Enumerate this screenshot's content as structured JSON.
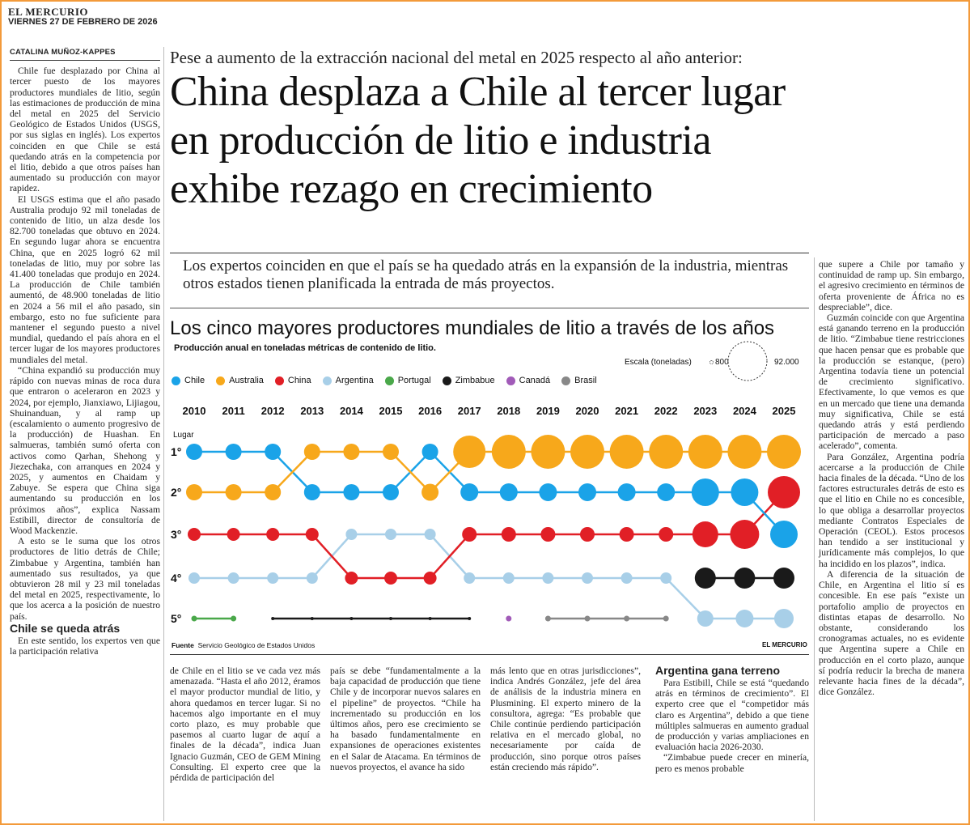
{
  "masthead": {
    "paper": "EL MERCURIO",
    "date": "VIERNES 27 DE FEBRERO DE 2026"
  },
  "byline": "CATALINA MUÑOZ-KAPPES",
  "kicker": "Pese a aumento de la extracción nacional del metal en 2025 respecto al año anterior:",
  "headline": [
    "China desplaza a Chile al tercer lugar",
    "en producción de litio e industria",
    "exhibe rezago en crecimiento"
  ],
  "dek": "Los expertos coinciden en que el país se ha quedado atrás en la expansión de la industria, mientras otros estados tienen planificada la entrada de más proyectos.",
  "col1": {
    "p1": "Chile fue desplazado por China al tercer puesto de los mayores productores mundiales de litio, según las estimaciones de producción de mina del metal en 2025 del Servicio Geológico de Estados Unidos (USGS, por sus siglas en inglés). Los expertos coinciden en que Chile se está quedando atrás en la competencia por el litio, debido a que otros países han aumentado su producción con mayor rapidez.",
    "p2": "El USGS estima que el año pasado Australia produjo 92 mil toneladas de contenido de litio, un alza desde los 82.700 toneladas que obtuvo en 2024. En segundo lugar ahora se encuentra China, que en 2025 logró 62 mil toneladas de litio, muy por sobre las 41.400 toneladas que produjo en 2024. La producción de Chile también aumentó, de 48.900 toneladas de litio en 2024 a 56 mil el año pasado, sin embargo, esto no fue suficiente para mantener el segundo puesto a nivel mundial, quedando el país ahora en el tercer lugar de los mayores productores mundiales del metal.",
    "p3": "“China expandió su producción muy rápido con nuevas minas de roca dura que entraron o aceleraron en 2023 y 2024, por ejemplo, Jianxiawo, Lijiagou, Shuinanduan, y al ramp up (escalamiento o aumento progresivo de la producción) de Huashan. En salmueras, también sumó oferta con activos como Qarhan, Shehong y Jiezechaka, con arranques en 2024 y 2025, y aumentos en Chaidam y Zabuye. Se espera que China siga aumentando su producción en los próximos años”, explica Nassam Estibill, director de consultoría de Wood Mackenzie.",
    "p4": "A esto se le suma que los otros productores de litio detrás de Chile; Zimbabue y Argentina, también han aumentado sus resultados, ya que obtuvieron 28 mil y 23 mil toneladas del metal en 2025, respectivamente, lo que los acerca a la posición de nuestro país.",
    "sub": "Chile se queda atrás",
    "p5": "En este sentido, los expertos ven que la participación relativa"
  },
  "col2": "de Chile en el litio se ve cada vez más amenazada. “Hasta el año 2012, éramos el mayor productor mundial de litio, y ahora quedamos en tercer lugar. Si no hacemos algo importante en el muy corto plazo, es muy probable que pasemos al cuarto lugar de aquí a finales de la década”, indica Juan Ignacio Guzmán, CEO de GEM Mining Consulting. El experto cree que la pérdida de participación del",
  "col3": "país se debe “fundamentalmente a la baja capacidad de producción que tiene Chile y de incorporar nuevos salares en el pipeline” de proyectos. “Chile ha incrementado su producción en los últimos años, pero ese crecimiento se ha basado fundamentalmente en expansiones de operaciones existentes en el Salar de Atacama. En términos de nuevos proyectos, el avance ha sido",
  "col4": "más lento que en otras jurisdicciones”, indica Andrés González, jefe del área de análisis de la industria minera en Plusmining. El experto minero de la consultora, agrega: “Es probable que Chile continúe perdiendo participación relativa en el mercado global, no necesariamente por caída de producción, sino porque otros países están creciendo más rápido”.",
  "col5": {
    "sub": "Argentina gana terreno",
    "p1": "Para Estibill, Chile se está “quedando atrás en términos de crecimiento”. El experto cree que el “competidor más claro es Argentina”, debido a que tiene múltiples salmueras en aumento gradual de producción y varias ampliaciones en evaluación hacia 2026-2030.",
    "p2": "“Zimbabue puede crecer en minería, pero es menos probable"
  },
  "col6": {
    "p1": "que supere a Chile por tamaño y continuidad de ramp up. Sin embargo, el agresivo crecimiento en términos de oferta proveniente de África no es despreciable”, dice.",
    "p2": "Guzmán coincide con que Argentina está ganando terreno en la producción de litio. “Zimbabue tiene restricciones que hacen pensar que es probable que la producción se estanque, (pero) Argentina todavía tiene un potencial de crecimiento significativo. Efectivamente, lo que vemos es que en un mercado que tiene una demanda muy significativa, Chile se está quedando atrás y está perdiendo participación de mercado a paso acelerado”, comenta.",
    "p3": "Para González, Argentina podría acercarse a la producción de Chile hacia finales de la década. “Uno de los factores estructurales detrás de esto es que el litio en Chile no es concesible, lo que obliga a desarrollar proyectos mediante Contratos Especiales de Operación (CEOL). Estos procesos han tendido a ser institucional y jurídicamente más complejos, lo que ha incidido en los plazos”, indica.",
    "p4": "A diferencia de la situación de Chile, en Argentina el litio sí es concesible. En ese país “existe un portafolio amplio de proyectos en distintas etapas de desarrollo. No obstante, considerando los cronogramas actuales, no es evidente que Argentina supere a Chile en producción en el corto plazo, aunque sí podría reducir la brecha de manera relevante hacia fines de la década”, dice González."
  },
  "chart": {
    "title": "Los cinco mayores productores mundiales de litio a través de los años",
    "subtitle": "Producción anual en toneladas métricas de contenido de litio.",
    "scale_label": "Escala (toneladas)",
    "scale_min": "800",
    "scale_max": "92.000",
    "lugar_label": "Lugar",
    "fuente_label": "Fuente",
    "fuente_text": "Servicio Geológico de Estados Unidos",
    "credit": "EL MERCURIO",
    "legend": [
      {
        "name": "Chile",
        "color": "#1aa3e8"
      },
      {
        "name": "Australia",
        "color": "#f7a81b"
      },
      {
        "name": "China",
        "color": "#e11f26"
      },
      {
        "name": "Argentina",
        "color": "#a8cfe8"
      },
      {
        "name": "Portugal",
        "color": "#4aa84a"
      },
      {
        "name": "Zimbabue",
        "color": "#1a1a1a"
      },
      {
        "name": "Canadá",
        "color": "#a15bb8"
      },
      {
        "name": "Brasil",
        "color": "#888888"
      }
    ]
  },
  "chart_data": {
    "type": "bump",
    "title": "Los cinco mayores productores mundiales de litio a través de los años",
    "xlabel": "",
    "ylabel": "Lugar",
    "years": [
      "2010",
      "2011",
      "2012",
      "2013",
      "2014",
      "2015",
      "2016",
      "2017",
      "2018",
      "2019",
      "2020",
      "2021",
      "2022",
      "2023",
      "2024",
      "2025"
    ],
    "rank_labels": [
      "1°",
      "2°",
      "3°",
      "4°",
      "5°"
    ],
    "series": [
      {
        "name": "Chile",
        "ranks": [
          1,
          1,
          1,
          2,
          2,
          2,
          1,
          2,
          2,
          2,
          2,
          2,
          2,
          2,
          2,
          3
        ],
        "tonnes_2024": 48900,
        "tonnes_2025": 56000
      },
      {
        "name": "Australia",
        "ranks": [
          2,
          2,
          2,
          1,
          1,
          1,
          2,
          1,
          1,
          1,
          1,
          1,
          1,
          1,
          1,
          1
        ],
        "tonnes_2024": 82700,
        "tonnes_2025": 92000
      },
      {
        "name": "China",
        "ranks": [
          3,
          3,
          3,
          3,
          4,
          4,
          4,
          3,
          3,
          3,
          3,
          3,
          3,
          3,
          3,
          2
        ],
        "tonnes_2024": 41400,
        "tonnes_2025": 62000
      },
      {
        "name": "Argentina",
        "ranks": [
          4,
          4,
          4,
          4,
          3,
          3,
          3,
          4,
          4,
          4,
          4,
          4,
          4,
          5,
          5,
          5
        ],
        "tonnes_2025": 23000
      },
      {
        "name": "Portugal",
        "ranks": [
          5,
          5,
          null,
          null,
          null,
          null,
          null,
          null,
          null,
          null,
          null,
          null,
          null,
          null,
          null,
          null
        ]
      },
      {
        "name": "Zimbabue",
        "ranks": [
          null,
          null,
          5,
          5,
          5,
          5,
          5,
          5,
          null,
          null,
          null,
          null,
          null,
          4,
          4,
          4
        ],
        "tonnes_2025": 28000
      },
      {
        "name": "Canadá",
        "ranks": [
          null,
          null,
          null,
          null,
          null,
          null,
          null,
          null,
          5,
          null,
          null,
          null,
          null,
          null,
          null,
          null
        ]
      },
      {
        "name": "Brasil",
        "ranks": [
          null,
          null,
          null,
          null,
          null,
          null,
          null,
          null,
          null,
          5,
          5,
          5,
          5,
          null,
          null,
          null
        ]
      }
    ],
    "scale_tonnes": [
      800,
      92000
    ]
  }
}
